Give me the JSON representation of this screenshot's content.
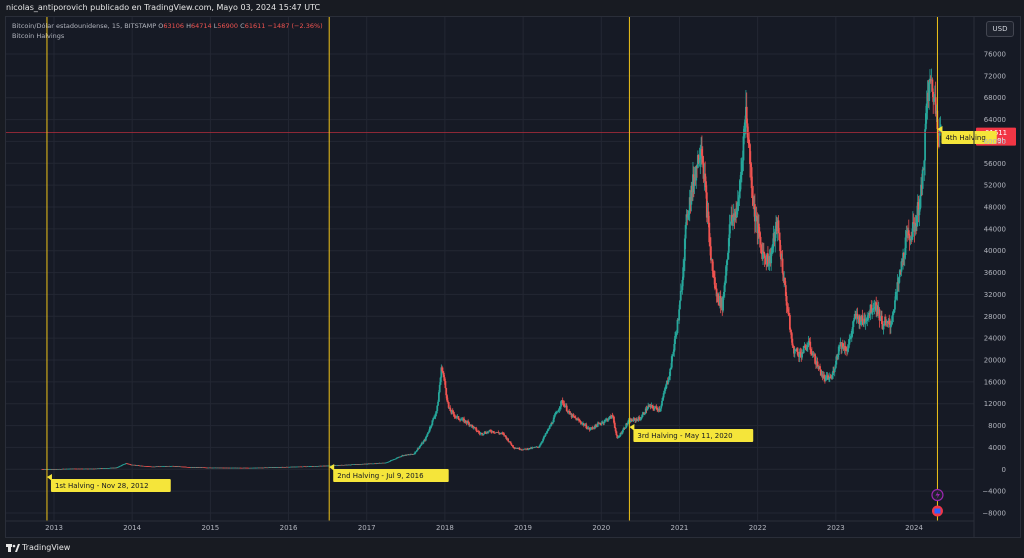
{
  "header": {
    "title": "nicolas_antiporovich publicado en TradingView.com, Mayo 03, 2024 15:47 UTC"
  },
  "legend": {
    "symbol": "Bitcoin/Dólar estadounidense, 15, BITSTAMP",
    "o_label": "O",
    "o_value": "63106",
    "h_label": "H",
    "h_value": "64714",
    "l_label": "L",
    "l_value": "56900",
    "c_label": "C",
    "c_value": "61611",
    "change": "−1487 (−2.36%)",
    "indicator": "Bitcoin Halvings"
  },
  "currency_button": "USD",
  "footer": {
    "brand": "TradingView"
  },
  "colors": {
    "up": "#26a69a",
    "down": "#ef5350",
    "halving_line": "#f0c419",
    "label_bg": "#f5e53a",
    "price_line": "#b32c3c",
    "grid": "#232733"
  },
  "chart_data": {
    "type": "candlestick",
    "title": "",
    "x_tick_labels": [
      "2013",
      "2014",
      "2015",
      "2016",
      "2017",
      "2018",
      "2019",
      "2020",
      "2021",
      "2022",
      "2023",
      "2024"
    ],
    "y_tick_labels": [
      "76000",
      "72000",
      "68000",
      "64000",
      "60000",
      "56000",
      "52000",
      "48000",
      "44000",
      "40000",
      "36000",
      "32000",
      "28000",
      "24000",
      "20000",
      "16000",
      "12000",
      "8000",
      "4000",
      "0",
      "−4000",
      "−8000"
    ],
    "ylim": [
      -8000,
      78000
    ],
    "xlim": [
      2012.82,
      2024.85
    ],
    "last_price": {
      "value": 61611,
      "label": "61611",
      "countdown": "2d 9h"
    },
    "halvings": [
      {
        "x": 2012.91,
        "label": "1st Halving - Nov 28, 2012"
      },
      {
        "x": 2016.52,
        "label": "2nd Halving - Jul 9, 2016"
      },
      {
        "x": 2020.36,
        "label": "3rd Halving - May 11, 2020"
      },
      {
        "x": 2024.3,
        "label": "4th Halving"
      }
    ],
    "price_path": [
      [
        2012.85,
        12
      ],
      [
        2013.0,
        15
      ],
      [
        2013.25,
        110
      ],
      [
        2013.5,
        100
      ],
      [
        2013.8,
        300
      ],
      [
        2013.92,
        1100
      ],
      [
        2014.0,
        800
      ],
      [
        2014.25,
        480
      ],
      [
        2014.5,
        600
      ],
      [
        2014.75,
        380
      ],
      [
        2015.0,
        300
      ],
      [
        2015.5,
        250
      ],
      [
        2016.0,
        430
      ],
      [
        2016.5,
        650
      ],
      [
        2017.0,
        1000
      ],
      [
        2017.25,
        1200
      ],
      [
        2017.45,
        2500
      ],
      [
        2017.6,
        2800
      ],
      [
        2017.75,
        5500
      ],
      [
        2017.9,
        11000
      ],
      [
        2017.96,
        19000
      ],
      [
        2018.05,
        11000
      ],
      [
        2018.15,
        9500
      ],
      [
        2018.3,
        8500
      ],
      [
        2018.45,
        6500
      ],
      [
        2018.6,
        7000
      ],
      [
        2018.75,
        6400
      ],
      [
        2018.88,
        4000
      ],
      [
        2019.0,
        3600
      ],
      [
        2019.2,
        4100
      ],
      [
        2019.35,
        8000
      ],
      [
        2019.5,
        12500
      ],
      [
        2019.6,
        10000
      ],
      [
        2019.75,
        8500
      ],
      [
        2019.85,
        7300
      ],
      [
        2020.0,
        8500
      ],
      [
        2020.15,
        9800
      ],
      [
        2020.2,
        5500
      ],
      [
        2020.35,
        8800
      ],
      [
        2020.5,
        9300
      ],
      [
        2020.6,
        11500
      ],
      [
        2020.75,
        11000
      ],
      [
        2020.88,
        18000
      ],
      [
        2021.0,
        29000
      ],
      [
        2021.1,
        47000
      ],
      [
        2021.28,
        60000
      ],
      [
        2021.4,
        39000
      ],
      [
        2021.47,
        32000
      ],
      [
        2021.55,
        30000
      ],
      [
        2021.65,
        45000
      ],
      [
        2021.75,
        48000
      ],
      [
        2021.85,
        66000
      ],
      [
        2021.95,
        48000
      ],
      [
        2022.05,
        40000
      ],
      [
        2022.15,
        38000
      ],
      [
        2022.25,
        45000
      ],
      [
        2022.35,
        33000
      ],
      [
        2022.45,
        22000
      ],
      [
        2022.55,
        21000
      ],
      [
        2022.65,
        23000
      ],
      [
        2022.75,
        19500
      ],
      [
        2022.85,
        16500
      ],
      [
        2022.95,
        16800
      ],
      [
        2023.05,
        23000
      ],
      [
        2023.15,
        22000
      ],
      [
        2023.25,
        28000
      ],
      [
        2023.35,
        27000
      ],
      [
        2023.5,
        30500
      ],
      [
        2023.6,
        26500
      ],
      [
        2023.7,
        26500
      ],
      [
        2023.8,
        34000
      ],
      [
        2023.9,
        42000
      ],
      [
        2024.0,
        44000
      ],
      [
        2024.1,
        51000
      ],
      [
        2024.17,
        68000
      ],
      [
        2024.22,
        71000
      ],
      [
        2024.28,
        66000
      ],
      [
        2024.33,
        62000
      ],
      [
        2024.34,
        61611
      ]
    ]
  }
}
